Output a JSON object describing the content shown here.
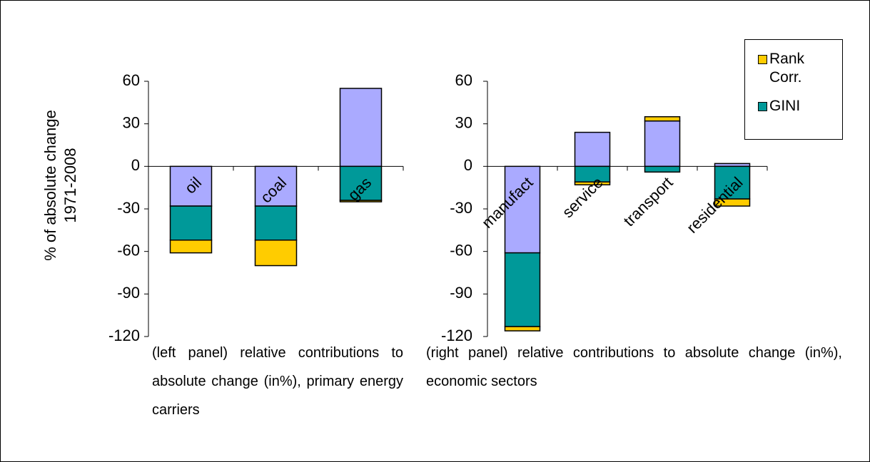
{
  "chart_data": [
    {
      "type": "bar",
      "stacked": true,
      "ylabel": [
        "% of absolute change",
        "1971-2008"
      ],
      "categories": [
        "oil",
        "coal",
        "gas"
      ],
      "series": [
        {
          "color": "#aaaaff",
          "values": [
            -28,
            -28,
            55
          ]
        },
        {
          "color": "#009999",
          "values": [
            -24,
            -24,
            -24
          ]
        },
        {
          "color": "#ffcc00",
          "values": [
            -9,
            -18,
            -1
          ]
        }
      ],
      "ylim": [
        -120,
        60
      ],
      "yticks": [
        -120,
        -90,
        -60,
        -30,
        0,
        30,
        60
      ],
      "caption": "(left panel) relative contributions to absolute change (in%), primary energy carriers"
    },
    {
      "type": "bar",
      "stacked": true,
      "categories": [
        "manufact",
        "service",
        "transport",
        "residential"
      ],
      "series": [
        {
          "color": "#aaaaff",
          "values": [
            -61,
            24,
            32,
            2
          ]
        },
        {
          "name": "GINI",
          "color": "#009999",
          "values": [
            -52,
            -11,
            -4,
            -23
          ]
        },
        {
          "name": "Rank Corr.",
          "color": "#ffcc00",
          "values": [
            -3,
            -2,
            3,
            -5
          ]
        }
      ],
      "ylim": [
        -120,
        60
      ],
      "yticks": [
        -120,
        -90,
        -60,
        -30,
        0,
        30,
        60
      ],
      "caption": "(right panel) relative contributions to absolute change (in%), economic sectors"
    }
  ]
}
